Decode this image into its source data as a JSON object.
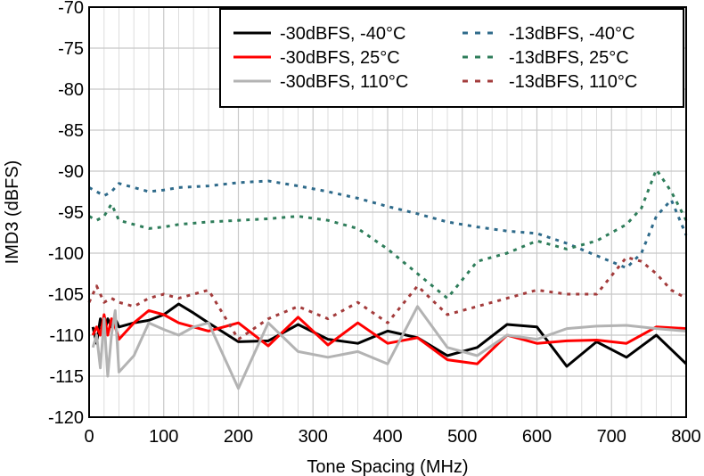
{
  "chart_data": {
    "type": "line",
    "title": "",
    "xlabel": "Tone Spacing (MHz)",
    "ylabel": "IMD3 (dBFS)",
    "xlim": [
      0,
      800
    ],
    "ylim": [
      -120,
      -70
    ],
    "x_ticks": [
      0,
      100,
      200,
      300,
      400,
      500,
      600,
      700,
      800
    ],
    "y_ticks": [
      -70,
      -75,
      -80,
      -85,
      -90,
      -95,
      -100,
      -105,
      -110,
      -115,
      -120
    ],
    "x_tick_labels": [
      "0",
      "100",
      "200",
      "300",
      "400",
      "500",
      "600",
      "700",
      "800"
    ],
    "y_tick_labels": [
      "-70",
      "-75",
      "-80",
      "-85",
      "-90",
      "-95",
      "-100",
      "-105",
      "-110",
      "-115",
      "-120"
    ],
    "grid": true,
    "legend_position": "top-right",
    "series": [
      {
        "name": "-30dBFS, -40°C",
        "color": "#000000",
        "style": "solid",
        "x": [
          5,
          10,
          15,
          20,
          25,
          30,
          35,
          40,
          60,
          80,
          100,
          120,
          140,
          160,
          200,
          240,
          280,
          320,
          360,
          400,
          440,
          480,
          520,
          560,
          600,
          640,
          680,
          720,
          760,
          800
        ],
        "y": [
          -109,
          -111,
          -108,
          -110,
          -108,
          -109,
          -108,
          -109,
          -108.5,
          -108.2,
          -107.5,
          -106.2,
          -107.3,
          -108.5,
          -110.8,
          -110.7,
          -108.7,
          -110.5,
          -111,
          -109.5,
          -110.3,
          -112.5,
          -111.5,
          -108.7,
          -109,
          -113.8,
          -110.8,
          -112.7,
          -110,
          -113.5
        ]
      },
      {
        "name": "-30dBFS, 25°C",
        "color": "#ff0000",
        "style": "solid",
        "x": [
          5,
          10,
          15,
          20,
          25,
          30,
          35,
          40,
          60,
          80,
          100,
          120,
          140,
          160,
          200,
          240,
          280,
          320,
          360,
          400,
          440,
          480,
          520,
          560,
          600,
          640,
          680,
          720,
          760,
          800
        ],
        "y": [
          -110,
          -109,
          -110,
          -107.5,
          -110,
          -108,
          -109,
          -110.5,
          -108.5,
          -107,
          -107.5,
          -108.5,
          -109,
          -109.5,
          -108.5,
          -111.3,
          -107.8,
          -111.2,
          -108.5,
          -111,
          -110.3,
          -113,
          -113.5,
          -110,
          -111,
          -110.7,
          -110.6,
          -111,
          -109,
          -109.2
        ]
      },
      {
        "name": "-30dBFS, 110°C",
        "color": "#b3b3b3",
        "style": "solid",
        "x": [
          5,
          10,
          15,
          20,
          25,
          30,
          35,
          40,
          60,
          80,
          100,
          120,
          140,
          160,
          200,
          240,
          280,
          320,
          360,
          400,
          440,
          480,
          520,
          560,
          600,
          640,
          680,
          720,
          760,
          800
        ],
        "y": [
          -111.5,
          -110,
          -114,
          -108,
          -115,
          -110,
          -107,
          -114.5,
          -112.5,
          -108.5,
          -109.3,
          -110,
          -109,
          -108.5,
          -116.5,
          -108.5,
          -112,
          -112.7,
          -112,
          -113.5,
          -106.5,
          -111.5,
          -112.5,
          -110,
          -110.5,
          -109.2,
          -108.9,
          -108.8,
          -109.2,
          -109.5
        ]
      },
      {
        "name": "-13dBFS, -40°C",
        "color": "#2e6a8a",
        "style": "dotted",
        "x": [
          0,
          10,
          20,
          30,
          40,
          60,
          80,
          100,
          120,
          160,
          200,
          240,
          280,
          320,
          360,
          400,
          440,
          480,
          520,
          560,
          600,
          640,
          680,
          720,
          740,
          760,
          780,
          800
        ],
        "y": [
          -92,
          -92.5,
          -93,
          -92.5,
          -91.5,
          -92,
          -92.5,
          -92.3,
          -92,
          -91.8,
          -91.4,
          -91.2,
          -91.8,
          -92.5,
          -93.3,
          -94.3,
          -95.2,
          -96.2,
          -96.8,
          -97.3,
          -97.6,
          -98.8,
          -100.3,
          -101.8,
          -100,
          -95.5,
          -93.5,
          -97.8
        ]
      },
      {
        "name": "-13dBFS, 25°C",
        "color": "#2e7d5a",
        "style": "dotted",
        "x": [
          0,
          10,
          20,
          30,
          40,
          60,
          80,
          100,
          120,
          160,
          200,
          240,
          280,
          320,
          360,
          400,
          440,
          480,
          520,
          560,
          600,
          640,
          680,
          720,
          740,
          760,
          780,
          800
        ],
        "y": [
          -95.5,
          -96,
          -95.5,
          -94,
          -96,
          -96.5,
          -97,
          -96.8,
          -96.5,
          -96.2,
          -96,
          -95.8,
          -95.5,
          -96,
          -97,
          -99.5,
          -102.5,
          -105.5,
          -101,
          -100,
          -98.5,
          -99.5,
          -98.5,
          -96.5,
          -94.5,
          -89.8,
          -92.5,
          -96
        ]
      },
      {
        "name": "-13dBFS, 110°C",
        "color": "#a33b3b",
        "style": "dotted",
        "x": [
          0,
          10,
          20,
          30,
          40,
          60,
          80,
          100,
          120,
          160,
          200,
          240,
          280,
          320,
          360,
          400,
          440,
          480,
          520,
          560,
          600,
          640,
          680,
          720,
          740,
          760,
          780,
          800
        ],
        "y": [
          -106,
          -104,
          -106,
          -105.5,
          -106,
          -106.5,
          -105.5,
          -105,
          -105.5,
          -104.5,
          -110.5,
          -108,
          -106.5,
          -108,
          -106,
          -108.5,
          -104,
          -107.5,
          -106.5,
          -105.5,
          -104.5,
          -105,
          -105,
          -100.5,
          -101,
          -102.5,
          -104.5,
          -105.5
        ]
      }
    ]
  }
}
